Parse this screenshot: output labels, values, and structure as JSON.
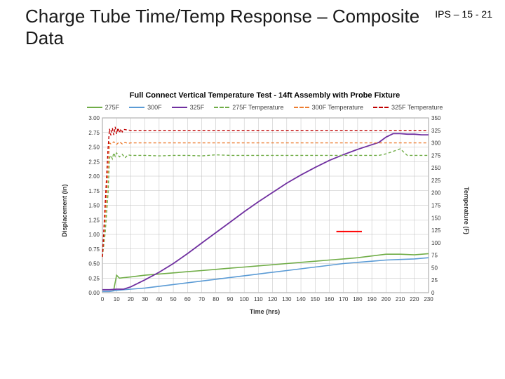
{
  "page_number": "IPS – 15 - 21",
  "title": "Charge Tube Time/Temp Response – Composite Data",
  "chart": {
    "type": "line",
    "title": "Full Connect Vertical Temperature Test - 14ft Assembly with Probe Fixture",
    "title_fontsize": 11,
    "background_color": "#ffffff",
    "plot_area_fill": "#ffffff",
    "grid_color": "#bfbfbf",
    "axis_color": "#808080",
    "tick_fontsize": 8,
    "label_fontsize": 9,
    "x": {
      "label": "Time (hrs)",
      "min": 0,
      "max": 230,
      "step": 10
    },
    "y_left": {
      "label": "Displacement (in)",
      "min": 0,
      "max": 3.0,
      "step": 0.25,
      "decimals": 2
    },
    "y_right": {
      "label": "Temperature (F)",
      "min": 0,
      "max": 350,
      "step": 25
    },
    "legend": [
      {
        "name": "275F",
        "color": "#70ad47",
        "dash": "solid"
      },
      {
        "name": "300F",
        "color": "#5b9bd5",
        "dash": "solid"
      },
      {
        "name": "325F",
        "color": "#7030a0",
        "dash": "solid"
      },
      {
        "name": "275F Temperature",
        "color": "#70ad47",
        "dash": "dashed"
      },
      {
        "name": "300F Temperature",
        "color": "#ed7d31",
        "dash": "dashed"
      },
      {
        "name": "325F Temperature",
        "color": "#c00000",
        "dash": "dashed"
      }
    ],
    "series": [
      {
        "name": "275F",
        "axis": "left",
        "color": "#70ad47",
        "dash": "solid",
        "width": 1.6,
        "points": [
          [
            0,
            0.05
          ],
          [
            5,
            0.05
          ],
          [
            8,
            0.05
          ],
          [
            10,
            0.3
          ],
          [
            12,
            0.25
          ],
          [
            20,
            0.27
          ],
          [
            30,
            0.3
          ],
          [
            40,
            0.32
          ],
          [
            50,
            0.34
          ],
          [
            60,
            0.36
          ],
          [
            70,
            0.38
          ],
          [
            80,
            0.4
          ],
          [
            90,
            0.42
          ],
          [
            100,
            0.44
          ],
          [
            110,
            0.46
          ],
          [
            120,
            0.48
          ],
          [
            130,
            0.5
          ],
          [
            140,
            0.52
          ],
          [
            150,
            0.54
          ],
          [
            160,
            0.56
          ],
          [
            170,
            0.58
          ],
          [
            180,
            0.6
          ],
          [
            190,
            0.63
          ],
          [
            200,
            0.66
          ],
          [
            210,
            0.66
          ],
          [
            220,
            0.65
          ],
          [
            230,
            0.67
          ]
        ]
      },
      {
        "name": "300F",
        "axis": "left",
        "color": "#5b9bd5",
        "dash": "solid",
        "width": 1.6,
        "points": [
          [
            0,
            0.02
          ],
          [
            5,
            0.02
          ],
          [
            10,
            0.04
          ],
          [
            20,
            0.06
          ],
          [
            30,
            0.08
          ],
          [
            40,
            0.11
          ],
          [
            50,
            0.14
          ],
          [
            60,
            0.17
          ],
          [
            70,
            0.2
          ],
          [
            80,
            0.23
          ],
          [
            90,
            0.26
          ],
          [
            100,
            0.29
          ],
          [
            110,
            0.32
          ],
          [
            120,
            0.35
          ],
          [
            130,
            0.38
          ],
          [
            140,
            0.41
          ],
          [
            150,
            0.44
          ],
          [
            160,
            0.47
          ],
          [
            170,
            0.5
          ],
          [
            180,
            0.52
          ],
          [
            190,
            0.54
          ],
          [
            200,
            0.56
          ],
          [
            210,
            0.57
          ],
          [
            220,
            0.58
          ],
          [
            230,
            0.6
          ]
        ]
      },
      {
        "name": "325F",
        "axis": "left",
        "color": "#7030a0",
        "dash": "solid",
        "width": 1.8,
        "points": [
          [
            0,
            0.05
          ],
          [
            5,
            0.05
          ],
          [
            10,
            0.06
          ],
          [
            15,
            0.06
          ],
          [
            20,
            0.1
          ],
          [
            30,
            0.22
          ],
          [
            40,
            0.35
          ],
          [
            50,
            0.5
          ],
          [
            60,
            0.67
          ],
          [
            70,
            0.85
          ],
          [
            80,
            1.03
          ],
          [
            90,
            1.21
          ],
          [
            100,
            1.39
          ],
          [
            110,
            1.56
          ],
          [
            120,
            1.72
          ],
          [
            130,
            1.88
          ],
          [
            140,
            2.02
          ],
          [
            150,
            2.15
          ],
          [
            160,
            2.27
          ],
          [
            170,
            2.37
          ],
          [
            180,
            2.46
          ],
          [
            190,
            2.54
          ],
          [
            195,
            2.58
          ],
          [
            200,
            2.67
          ],
          [
            205,
            2.73
          ],
          [
            210,
            2.73
          ],
          [
            215,
            2.72
          ],
          [
            220,
            2.72
          ],
          [
            225,
            2.71
          ],
          [
            230,
            2.71
          ]
        ]
      },
      {
        "name": "275F Temperature",
        "axis": "right",
        "color": "#70ad47",
        "dash": "dashed",
        "width": 1.4,
        "points": [
          [
            0,
            72
          ],
          [
            2,
            120
          ],
          [
            4,
            200
          ],
          [
            5,
            270
          ],
          [
            6,
            275
          ],
          [
            7,
            268
          ],
          [
            8,
            280
          ],
          [
            9,
            273
          ],
          [
            10,
            280
          ],
          [
            12,
            272
          ],
          [
            14,
            277
          ],
          [
            16,
            270
          ],
          [
            18,
            276
          ],
          [
            20,
            275
          ],
          [
            30,
            275
          ],
          [
            40,
            274
          ],
          [
            50,
            275
          ],
          [
            60,
            275
          ],
          [
            70,
            274
          ],
          [
            80,
            276
          ],
          [
            90,
            275
          ],
          [
            100,
            275
          ],
          [
            110,
            275
          ],
          [
            120,
            275
          ],
          [
            130,
            275
          ],
          [
            140,
            275
          ],
          [
            150,
            275
          ],
          [
            160,
            275
          ],
          [
            170,
            275
          ],
          [
            180,
            275
          ],
          [
            190,
            275
          ],
          [
            195,
            275
          ],
          [
            200,
            278
          ],
          [
            205,
            283
          ],
          [
            210,
            288
          ],
          [
            215,
            275
          ],
          [
            220,
            275
          ],
          [
            225,
            275
          ],
          [
            230,
            275
          ]
        ]
      },
      {
        "name": "300F Temperature",
        "axis": "right",
        "color": "#ed7d31",
        "dash": "dashed",
        "width": 1.4,
        "points": [
          [
            0,
            72
          ],
          [
            2,
            150
          ],
          [
            4,
            250
          ],
          [
            5,
            300
          ],
          [
            6,
            298
          ],
          [
            8,
            302
          ],
          [
            10,
            297
          ],
          [
            12,
            302
          ],
          [
            14,
            298
          ],
          [
            16,
            301
          ],
          [
            18,
            299
          ],
          [
            20,
            300
          ],
          [
            30,
            300
          ],
          [
            50,
            300
          ],
          [
            70,
            300
          ],
          [
            90,
            300
          ],
          [
            110,
            300
          ],
          [
            130,
            300
          ],
          [
            150,
            300
          ],
          [
            170,
            300
          ],
          [
            190,
            300
          ],
          [
            210,
            300
          ],
          [
            230,
            300
          ]
        ]
      },
      {
        "name": "325F Temperature",
        "axis": "right",
        "color": "#c00000",
        "dash": "dashed",
        "width": 1.4,
        "points": [
          [
            0,
            72
          ],
          [
            2,
            180
          ],
          [
            4,
            290
          ],
          [
            5,
            328
          ],
          [
            6,
            315
          ],
          [
            7,
            330
          ],
          [
            8,
            316
          ],
          [
            9,
            332
          ],
          [
            10,
            318
          ],
          [
            11,
            330
          ],
          [
            12,
            320
          ],
          [
            13,
            328
          ],
          [
            14,
            322
          ],
          [
            15,
            327
          ],
          [
            20,
            325
          ],
          [
            30,
            325
          ],
          [
            50,
            325
          ],
          [
            70,
            325
          ],
          [
            90,
            325
          ],
          [
            110,
            325
          ],
          [
            130,
            325
          ],
          [
            150,
            325
          ],
          [
            170,
            325
          ],
          [
            190,
            325
          ],
          [
            210,
            325
          ],
          [
            230,
            325
          ]
        ]
      }
    ]
  },
  "red_callout": {
    "x": 165,
    "y_left": 1.05,
    "width_hrs": 18,
    "color": "#ff0000",
    "stroke": 2
  }
}
